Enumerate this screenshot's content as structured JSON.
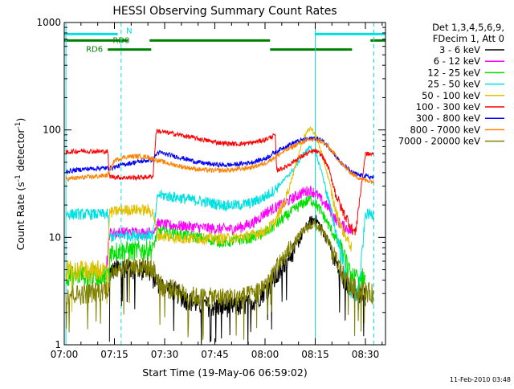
{
  "chart_data": {
    "type": "line",
    "title": "HESSI Observing Summary Count Rates",
    "xlabel": "Start Time (19-May-06 06:59:02)",
    "ylabel_main": "Count Rate (s",
    "ylabel_sup1": "-1",
    "ylabel_mid": " detector",
    "ylabel_sup2": "-1",
    "ylabel_end": ")",
    "yscale": "log",
    "xlim": [
      0,
      96
    ],
    "ylim": [
      1,
      1000
    ],
    "x_ticks": [
      {
        "t": 0,
        "label": "07:00"
      },
      {
        "t": 15,
        "label": "07:15"
      },
      {
        "t": 30,
        "label": "07:30"
      },
      {
        "t": 45,
        "label": "07:45"
      },
      {
        "t": 60,
        "label": "08:00"
      },
      {
        "t": 75,
        "label": "08:15"
      },
      {
        "t": 90,
        "label": "08:30"
      }
    ],
    "y_ticks": [
      {
        "v": 1,
        "label": "1"
      },
      {
        "v": 10,
        "label": "10"
      },
      {
        "v": 100,
        "label": "100"
      },
      {
        "v": 1000,
        "label": "1000"
      }
    ],
    "legend": {
      "header1": "Det 1,3,4,5,6,9,",
      "header2": "FDecim 1, Att 0",
      "placement": "right"
    },
    "annotations": [
      {
        "text": "N",
        "t": 18.5,
        "v": 850,
        "color": "#00e0e0"
      },
      {
        "text": "RD0",
        "t": 14.5,
        "v": 690,
        "color": "#008000"
      },
      {
        "text": "RD6",
        "t": 6.5,
        "v": 570,
        "color": "#008000"
      }
    ],
    "bars": [
      {
        "name": "N",
        "color": "#00e0e0",
        "v": 780,
        "segments": [
          [
            0,
            16
          ],
          [
            75,
            96
          ]
        ]
      },
      {
        "name": "RD0",
        "color": "#008000",
        "v": 680,
        "segments": [
          [
            0,
            19
          ],
          [
            25.5,
            61.5
          ],
          [
            91.5,
            96
          ]
        ]
      },
      {
        "name": "RD6",
        "color": "#008000",
        "v": 560,
        "segments": [
          [
            13,
            26
          ],
          [
            61.5,
            86
          ]
        ]
      }
    ],
    "vlines": [
      {
        "t": 0.5,
        "color": "#00e0e0",
        "dash": false
      },
      {
        "t": 17,
        "color": "#00e0e0",
        "dash": true
      },
      {
        "t": 75,
        "color": "#00e0e0",
        "dash": false
      },
      {
        "t": 92.5,
        "color": "#00e0e0",
        "dash": true
      }
    ],
    "series": [
      {
        "name": "3 - 6 keV",
        "color": "#000000",
        "points": [
          [
            13.5,
            1
          ],
          [
            13.6,
            4.8
          ],
          [
            16,
            5.2
          ],
          [
            18,
            5.3
          ],
          [
            21,
            5.2
          ],
          [
            25,
            5
          ],
          [
            26.5,
            4.2
          ],
          [
            29,
            3.6
          ],
          [
            33,
            3.2
          ],
          [
            36,
            2.7
          ],
          [
            40,
            2.4
          ],
          [
            44,
            2.3
          ],
          [
            48,
            2.3
          ],
          [
            52,
            2.3
          ],
          [
            55,
            2.4
          ],
          [
            58,
            2.8
          ],
          [
            61,
            3.5
          ],
          [
            64,
            4.5
          ],
          [
            67,
            6.5
          ],
          [
            70,
            9
          ],
          [
            72,
            12
          ],
          [
            73.5,
            14
          ],
          [
            75,
            15
          ],
          [
            77,
            12
          ],
          [
            79,
            9
          ],
          [
            81,
            6
          ],
          [
            83,
            4.2
          ],
          [
            85,
            3.6
          ],
          [
            86.5,
            3.2
          ],
          [
            90,
            2.8
          ]
        ]
      },
      {
        "name": "6 - 12 keV",
        "color": "#ff00ff",
        "points": [
          [
            12.5,
            5
          ],
          [
            13.5,
            11
          ],
          [
            17,
            11.2
          ],
          [
            21,
            11.2
          ],
          [
            25,
            11
          ],
          [
            26.5,
            11.5
          ],
          [
            28,
            13.5
          ],
          [
            31,
            13
          ],
          [
            35,
            12.8
          ],
          [
            39,
            12.5
          ],
          [
            43,
            12.2
          ],
          [
            47,
            12
          ],
          [
            50,
            12
          ],
          [
            53,
            12.5
          ],
          [
            57,
            14
          ],
          [
            60,
            17
          ],
          [
            63,
            19
          ],
          [
            66,
            21
          ],
          [
            69,
            24
          ],
          [
            71.5,
            26.5
          ],
          [
            73.5,
            27.5
          ],
          [
            75,
            26
          ],
          [
            77,
            22
          ],
          [
            79,
            19
          ],
          [
            81,
            15
          ],
          [
            83,
            13
          ],
          [
            85,
            12
          ],
          [
            86,
            11
          ]
        ]
      },
      {
        "name": "12 - 25 keV",
        "color": "#00e000",
        "points": [
          [
            0.5,
            4.5
          ],
          [
            5,
            4.5
          ],
          [
            10,
            4.5
          ],
          [
            13.5,
            4.5
          ],
          [
            13.6,
            7.5
          ],
          [
            17,
            7.6
          ],
          [
            21,
            7.6
          ],
          [
            25,
            7.7
          ],
          [
            26.5,
            8
          ],
          [
            28,
            11.5
          ],
          [
            32,
            11
          ],
          [
            36,
            10.5
          ],
          [
            40,
            10
          ],
          [
            44,
            9.5
          ],
          [
            48,
            9
          ],
          [
            52,
            9.5
          ],
          [
            56,
            10
          ],
          [
            60,
            11
          ],
          [
            63,
            13
          ],
          [
            66,
            15.5
          ],
          [
            69,
            18.5
          ],
          [
            71.5,
            21
          ],
          [
            73.5,
            22.5
          ],
          [
            75,
            21
          ],
          [
            77,
            17
          ],
          [
            79,
            13
          ],
          [
            81,
            10
          ],
          [
            83,
            7.5
          ],
          [
            85,
            5
          ],
          [
            86,
            4.3
          ],
          [
            90,
            4.3
          ]
        ]
      },
      {
        "name": "25 - 50 keV",
        "color": "#00e0e0",
        "points": [
          [
            0.5,
            16.5
          ],
          [
            5,
            16.5
          ],
          [
            10,
            16.5
          ],
          [
            13,
            16.5
          ],
          [
            13.5,
            10
          ],
          [
            17,
            10.5
          ],
          [
            21,
            10.5
          ],
          [
            25,
            10.5
          ],
          [
            26.5,
            10.5
          ],
          [
            28,
            25
          ],
          [
            32,
            24
          ],
          [
            36,
            23
          ],
          [
            40,
            22
          ],
          [
            44,
            21
          ],
          [
            48,
            20
          ],
          [
            52,
            20
          ],
          [
            56,
            21
          ],
          [
            60,
            24
          ],
          [
            63,
            28
          ],
          [
            66,
            35
          ],
          [
            69,
            45
          ],
          [
            71.5,
            60
          ],
          [
            73.5,
            70
          ],
          [
            75,
            62
          ],
          [
            77,
            40
          ],
          [
            79,
            22
          ],
          [
            81,
            12
          ],
          [
            83,
            6.5
          ],
          [
            85,
            3.5
          ],
          [
            86,
            3
          ],
          [
            88,
            3
          ],
          [
            90,
            16.5
          ],
          [
            92.5,
            16.5
          ]
        ]
      },
      {
        "name": "50 - 100 keV",
        "color": "#e0c000",
        "points": [
          [
            0.5,
            5
          ],
          [
            5,
            5
          ],
          [
            10,
            5
          ],
          [
            13,
            5
          ],
          [
            13.5,
            17
          ],
          [
            17,
            18
          ],
          [
            21,
            18.2
          ],
          [
            25,
            18
          ],
          [
            26.5,
            17
          ],
          [
            28,
            10.5
          ],
          [
            32,
            10
          ],
          [
            36,
            9.8
          ],
          [
            40,
            9.8
          ],
          [
            44,
            9.8
          ],
          [
            48,
            9.8
          ],
          [
            52,
            10
          ],
          [
            56,
            10.5
          ],
          [
            60,
            11.5
          ],
          [
            63,
            14
          ],
          [
            66,
            22
          ],
          [
            69,
            45
          ],
          [
            71.5,
            85
          ],
          [
            73.5,
            105
          ],
          [
            75,
            92
          ],
          [
            77,
            60
          ],
          [
            79,
            35
          ],
          [
            81,
            18
          ],
          [
            83,
            12
          ],
          [
            85,
            9
          ],
          [
            86,
            8
          ]
        ]
      },
      {
        "name": "100 - 300 keV",
        "color": "#ff0000",
        "points": [
          [
            0.5,
            62
          ],
          [
            5,
            64
          ],
          [
            10,
            63
          ],
          [
            13,
            63
          ],
          [
            13.5,
            37
          ],
          [
            17,
            36
          ],
          [
            21,
            36
          ],
          [
            25,
            36.5
          ],
          [
            26.5,
            37
          ],
          [
            27.5,
            98
          ],
          [
            32,
            93
          ],
          [
            36,
            88
          ],
          [
            40,
            83
          ],
          [
            44,
            78
          ],
          [
            48,
            75
          ],
          [
            52,
            74
          ],
          [
            56,
            76
          ],
          [
            60,
            81
          ],
          [
            63,
            90
          ],
          [
            63.5,
            42
          ],
          [
            66,
            45
          ],
          [
            69,
            52
          ],
          [
            71.5,
            58
          ],
          [
            73.5,
            62
          ],
          [
            75,
            64
          ],
          [
            77,
            58
          ],
          [
            79,
            44
          ],
          [
            81,
            26
          ],
          [
            83,
            18
          ],
          [
            85,
            14
          ],
          [
            86,
            12
          ],
          [
            87,
            11
          ],
          [
            90,
            60
          ],
          [
            92.5,
            59
          ]
        ]
      },
      {
        "name": "300 - 800 keV",
        "color": "#0000ff",
        "points": [
          [
            0.5,
            41
          ],
          [
            5,
            43
          ],
          [
            10,
            44
          ],
          [
            13,
            44
          ],
          [
            15,
            45
          ],
          [
            18,
            48
          ],
          [
            21,
            50
          ],
          [
            25,
            52
          ],
          [
            26.5,
            53
          ],
          [
            28,
            62
          ],
          [
            32,
            58
          ],
          [
            36,
            54
          ],
          [
            40,
            50
          ],
          [
            44,
            48
          ],
          [
            48,
            47
          ],
          [
            52,
            48
          ],
          [
            56,
            50
          ],
          [
            60,
            54
          ],
          [
            63,
            62
          ],
          [
            66,
            70
          ],
          [
            69,
            77
          ],
          [
            71.5,
            81
          ],
          [
            73.5,
            83
          ],
          [
            75,
            84
          ],
          [
            77,
            80
          ],
          [
            79,
            70
          ],
          [
            81,
            58
          ],
          [
            83,
            48
          ],
          [
            85,
            43
          ],
          [
            86,
            40
          ],
          [
            88,
            38
          ],
          [
            90,
            37
          ],
          [
            92.5,
            36
          ]
        ]
      },
      {
        "name": "800 - 7000 keV",
        "color": "#ff8000",
        "points": [
          [
            0.5,
            35
          ],
          [
            5,
            36
          ],
          [
            10,
            37
          ],
          [
            13,
            38
          ],
          [
            15,
            52
          ],
          [
            18,
            56
          ],
          [
            21,
            57
          ],
          [
            25,
            56
          ],
          [
            26.5,
            54
          ],
          [
            28,
            52
          ],
          [
            32,
            48
          ],
          [
            36,
            45
          ],
          [
            40,
            43
          ],
          [
            44,
            42
          ],
          [
            48,
            42
          ],
          [
            52,
            43
          ],
          [
            56,
            45
          ],
          [
            60,
            49
          ],
          [
            63,
            56
          ],
          [
            66,
            64
          ],
          [
            69,
            72
          ],
          [
            71.5,
            78
          ],
          [
            73.5,
            81
          ],
          [
            75,
            82
          ],
          [
            77,
            78
          ],
          [
            79,
            69
          ],
          [
            81,
            58
          ],
          [
            83,
            48
          ],
          [
            85,
            42
          ],
          [
            86,
            39
          ],
          [
            88,
            36
          ],
          [
            90,
            34
          ],
          [
            92.5,
            33
          ]
        ]
      },
      {
        "name": "7000 - 20000 keV",
        "color": "#808000",
        "points": [
          [
            0.5,
            3
          ],
          [
            5,
            3
          ],
          [
            10,
            3.2
          ],
          [
            13,
            3.4
          ],
          [
            15,
            5.3
          ],
          [
            18,
            5.4
          ],
          [
            21,
            5.4
          ],
          [
            25,
            5.3
          ],
          [
            26.5,
            5.2
          ],
          [
            29,
            3.6
          ],
          [
            33,
            3.3
          ],
          [
            36,
            3
          ],
          [
            40,
            2.8
          ],
          [
            44,
            2.8
          ],
          [
            48,
            2.8
          ],
          [
            52,
            2.8
          ],
          [
            55,
            2.9
          ],
          [
            58,
            3.2
          ],
          [
            61,
            4
          ],
          [
            64,
            5.5
          ],
          [
            67,
            7.5
          ],
          [
            70,
            10
          ],
          [
            72,
            12
          ],
          [
            73.5,
            13
          ],
          [
            75,
            13.2
          ],
          [
            77,
            11.5
          ],
          [
            79,
            9
          ],
          [
            81,
            6.5
          ],
          [
            83,
            4.6
          ],
          [
            85,
            3.8
          ],
          [
            86.5,
            3.4
          ],
          [
            90,
            3.2
          ],
          [
            92.5,
            3
          ]
        ]
      }
    ]
  },
  "footer": {
    "date_stamp": "11-Feb-2010 03:48"
  }
}
